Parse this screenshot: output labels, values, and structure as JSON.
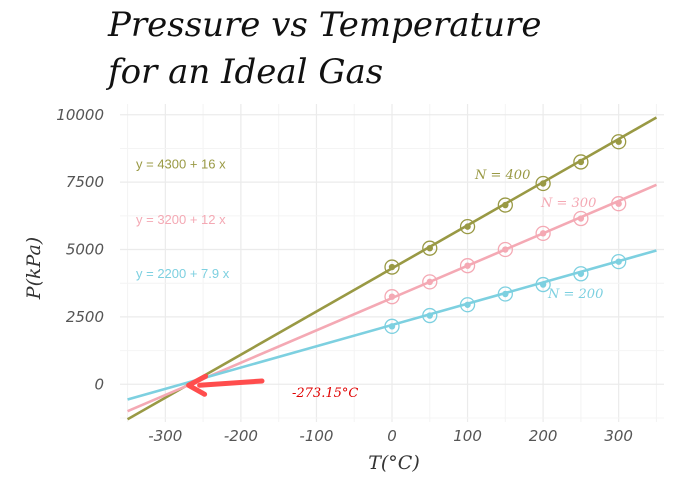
{
  "chart_data": {
    "type": "scatter",
    "title": [
      "Pressure vs Temperature",
      "for an Ideal Gas"
    ],
    "xlabel": "T(°C)",
    "ylabel": "P(kPa)",
    "xlim": [
      -360,
      360
    ],
    "ylim": [
      -1400,
      10400
    ],
    "xticks": [
      -300,
      -200,
      -100,
      0,
      100,
      200,
      300
    ],
    "yticks": [
      0,
      2500,
      5000,
      7500,
      10000
    ],
    "grid": true,
    "x": [
      0,
      50,
      100,
      150,
      200,
      250,
      300
    ],
    "series": [
      {
        "name": "N = 400",
        "color": "#999944",
        "equation": "y = 4300 + 16  x",
        "intercept": 4300,
        "slope": 16,
        "values": [
          4350,
          5050,
          5850,
          6650,
          7450,
          8250,
          9000
        ]
      },
      {
        "name": "N = 300",
        "color": "#f4a9b4",
        "equation": "y = 3200 + 12  x",
        "intercept": 3200,
        "slope": 12,
        "values": [
          3250,
          3800,
          4400,
          5000,
          5600,
          6150,
          6700
        ]
      },
      {
        "name": "N = 200",
        "color": "#7dd0e0",
        "equation": "y = 2200 + 7.9  x",
        "intercept": 2200,
        "slope": 7.9,
        "values": [
          2150,
          2550,
          2950,
          3350,
          3700,
          4100,
          4550
        ]
      }
    ],
    "line_range": [
      -350,
      350
    ],
    "annotation": {
      "text": "-273.15°C",
      "x": -273.15,
      "y": 0,
      "color": "#e00000"
    }
  }
}
